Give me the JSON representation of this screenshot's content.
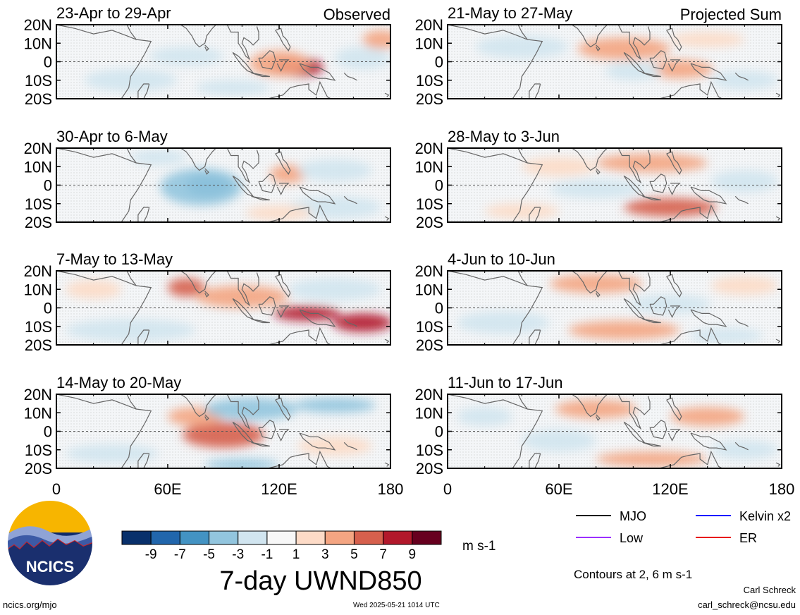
{
  "colors": {
    "mjo": "#000000",
    "low": "#9b30ff",
    "kelvin": "#0000ff",
    "er": "#e8141b",
    "land": "#666666",
    "colorbar": [
      "#08306b",
      "#2166ac",
      "#4393c3",
      "#92c5de",
      "#d1e5f0",
      "#f7f7f7",
      "#fddbc7",
      "#f4a582",
      "#d6604d",
      "#b2182b",
      "#67001f"
    ]
  },
  "chart_data": {
    "type": "heatmap",
    "variable": "7-day UWND850",
    "units": "m s-1",
    "x_range": [
      0,
      180
    ],
    "y_range": [
      -20,
      20
    ],
    "x_ticks": [
      "0",
      "60E",
      "120E",
      "180"
    ],
    "x_tick_values": [
      0,
      60,
      120,
      180
    ],
    "y_ticks": [
      "20N",
      "10N",
      "0",
      "10S",
      "20S"
    ],
    "y_tick_values": [
      20,
      10,
      0,
      -10,
      -20
    ],
    "equator_line": "dashed",
    "colorbar": {
      "boundaries": [
        -11,
        -9,
        -7,
        -5,
        -3,
        -1,
        1,
        3,
        5,
        7,
        9,
        11
      ],
      "tick_labels": [
        "-9",
        "-7",
        "-5",
        "-3",
        "-1",
        "1",
        "3",
        "5",
        "7",
        "9"
      ]
    },
    "contour_note": "Contours at 2, 6 m s-1",
    "legend": [
      {
        "name": "MJO",
        "color": "#000000"
      },
      {
        "name": "Kelvin x2",
        "color": "#0000ff"
      },
      {
        "name": "Low",
        "color": "#9b30ff"
      },
      {
        "name": "ER",
        "color": "#e8141b"
      }
    ],
    "column_labels": [
      "Observed",
      "Projected Sum"
    ],
    "panels": [
      {
        "title": "23-Apr to 29-Apr",
        "column": 0,
        "row": 0,
        "anomalies": [
          {
            "lon": 130,
            "lat": -3,
            "dlon": 14,
            "dlat": 5,
            "value": 7
          },
          {
            "lon": 120,
            "lat": -1,
            "dlon": 16,
            "dlat": 7,
            "value": 3
          },
          {
            "lon": 70,
            "lat": 3,
            "dlon": 20,
            "dlat": 5,
            "value": -2
          },
          {
            "lon": 165,
            "lat": 2,
            "dlon": 15,
            "dlat": 6,
            "value": -2
          },
          {
            "lon": 40,
            "lat": -10,
            "dlon": 25,
            "dlat": 6,
            "value": -2
          },
          {
            "lon": 175,
            "lat": 12,
            "dlon": 10,
            "dlat": 5,
            "value": 3
          },
          {
            "lon": 95,
            "lat": -14,
            "dlon": 20,
            "dlat": 4,
            "value": -2
          }
        ]
      },
      {
        "title": "30-Apr to 6-May",
        "column": 0,
        "row": 1,
        "anomalies": [
          {
            "lon": 82,
            "lat": 0,
            "dlon": 12,
            "dlat": 6,
            "value": -7
          },
          {
            "lon": 78,
            "lat": -1,
            "dlon": 22,
            "dlat": 10,
            "value": -4
          },
          {
            "lon": 125,
            "lat": 6,
            "dlon": 10,
            "dlat": 5,
            "value": 3
          },
          {
            "lon": 150,
            "lat": 8,
            "dlon": 20,
            "dlat": 6,
            "value": -3
          },
          {
            "lon": 150,
            "lat": -12,
            "dlon": 25,
            "dlat": 6,
            "value": -3
          },
          {
            "lon": 120,
            "lat": -15,
            "dlon": 18,
            "dlat": 4,
            "value": 2
          },
          {
            "lon": 55,
            "lat": 15,
            "dlon": 15,
            "dlat": 4,
            "value": -2
          }
        ]
      },
      {
        "title": "7-May to 13-May",
        "column": 0,
        "row": 2,
        "anomalies": [
          {
            "lon": 135,
            "lat": -3,
            "dlon": 18,
            "dlat": 4,
            "value": 7
          },
          {
            "lon": 165,
            "lat": -8,
            "dlon": 16,
            "dlat": 5,
            "value": 7
          },
          {
            "lon": 70,
            "lat": 11,
            "dlon": 10,
            "dlat": 5,
            "value": 5
          },
          {
            "lon": 100,
            "lat": 6,
            "dlon": 25,
            "dlat": 6,
            "value": 3
          },
          {
            "lon": 40,
            "lat": -12,
            "dlon": 35,
            "dlat": 6,
            "value": -3
          },
          {
            "lon": 150,
            "lat": 10,
            "dlon": 25,
            "dlat": 6,
            "value": -3
          },
          {
            "lon": 20,
            "lat": 10,
            "dlon": 15,
            "dlat": 5,
            "value": 2
          }
        ]
      },
      {
        "title": "14-May to 20-May",
        "column": 0,
        "row": 3,
        "anomalies": [
          {
            "lon": 90,
            "lat": -2,
            "dlon": 22,
            "dlat": 7,
            "value": 5
          },
          {
            "lon": 75,
            "lat": 8,
            "dlon": 15,
            "dlat": 5,
            "value": 3
          },
          {
            "lon": 105,
            "lat": 12,
            "dlon": 25,
            "dlat": 6,
            "value": -5
          },
          {
            "lon": 150,
            "lat": 14,
            "dlon": 22,
            "dlat": 4,
            "value": -4
          },
          {
            "lon": 100,
            "lat": -18,
            "dlon": 20,
            "dlat": 3,
            "value": -4
          },
          {
            "lon": 30,
            "lat": -12,
            "dlon": 25,
            "dlat": 5,
            "value": -2
          },
          {
            "lon": 150,
            "lat": -8,
            "dlon": 20,
            "dlat": 5,
            "value": 2
          }
        ]
      },
      {
        "title": "21-May to 27-May",
        "column": 1,
        "row": 0,
        "anomalies": [
          {
            "lon": 95,
            "lat": 7,
            "dlon": 25,
            "dlat": 6,
            "value": 3
          },
          {
            "lon": 125,
            "lat": -4,
            "dlon": 18,
            "dlat": 5,
            "value": 3
          },
          {
            "lon": 100,
            "lat": -5,
            "dlon": 15,
            "dlat": 5,
            "value": -3
          },
          {
            "lon": 160,
            "lat": -10,
            "dlon": 18,
            "dlat": 5,
            "value": -3
          },
          {
            "lon": 40,
            "lat": 8,
            "dlon": 25,
            "dlat": 6,
            "value": -2
          },
          {
            "lon": 140,
            "lat": 12,
            "dlon": 20,
            "dlat": 4,
            "value": 2
          }
        ]
      },
      {
        "title": "28-May to 3-Jun",
        "column": 1,
        "row": 1,
        "anomalies": [
          {
            "lon": 120,
            "lat": -12,
            "dlon": 25,
            "dlat": 5,
            "value": 5
          },
          {
            "lon": 110,
            "lat": 12,
            "dlon": 30,
            "dlat": 5,
            "value": 3
          },
          {
            "lon": 60,
            "lat": 10,
            "dlon": 20,
            "dlat": 5,
            "value": 2
          },
          {
            "lon": 80,
            "lat": -2,
            "dlon": 25,
            "dlat": 5,
            "value": -2
          },
          {
            "lon": 160,
            "lat": 2,
            "dlon": 18,
            "dlat": 6,
            "value": -2
          },
          {
            "lon": 40,
            "lat": -14,
            "dlon": 20,
            "dlat": 4,
            "value": 2
          }
        ]
      },
      {
        "title": "4-Jun to 10-Jun",
        "column": 1,
        "row": 2,
        "anomalies": [
          {
            "lon": 95,
            "lat": -12,
            "dlon": 30,
            "dlat": 5,
            "value": 4
          },
          {
            "lon": 80,
            "lat": 13,
            "dlon": 25,
            "dlat": 5,
            "value": 3
          },
          {
            "lon": 160,
            "lat": 12,
            "dlon": 18,
            "dlat": 5,
            "value": 2
          },
          {
            "lon": 120,
            "lat": 2,
            "dlon": 22,
            "dlat": 5,
            "value": -2
          },
          {
            "lon": 30,
            "lat": -8,
            "dlon": 25,
            "dlat": 6,
            "value": -2
          },
          {
            "lon": 150,
            "lat": -15,
            "dlon": 20,
            "dlat": 4,
            "value": -2
          }
        ]
      },
      {
        "title": "11-Jun to 17-Jun",
        "column": 1,
        "row": 3,
        "anomalies": [
          {
            "lon": 80,
            "lat": 12,
            "dlon": 22,
            "dlat": 5,
            "value": 4
          },
          {
            "lon": 110,
            "lat": -15,
            "dlon": 30,
            "dlat": 4,
            "value": 3
          },
          {
            "lon": 140,
            "lat": 8,
            "dlon": 20,
            "dlat": 5,
            "value": 3
          },
          {
            "lon": 60,
            "lat": -5,
            "dlon": 20,
            "dlat": 6,
            "value": -2
          },
          {
            "lon": 160,
            "lat": -10,
            "dlon": 18,
            "dlat": 5,
            "value": -2
          },
          {
            "lon": 20,
            "lat": 8,
            "dlon": 15,
            "dlat": 5,
            "value": -2
          }
        ]
      }
    ]
  },
  "footer": {
    "logo_text": "NCICS",
    "url": "ncics.org/mjo",
    "timestamp": "Wed 2025-05-21 1014 UTC",
    "author": "Carl Schreck",
    "email": "carl_schreck@ncsu.edu"
  }
}
